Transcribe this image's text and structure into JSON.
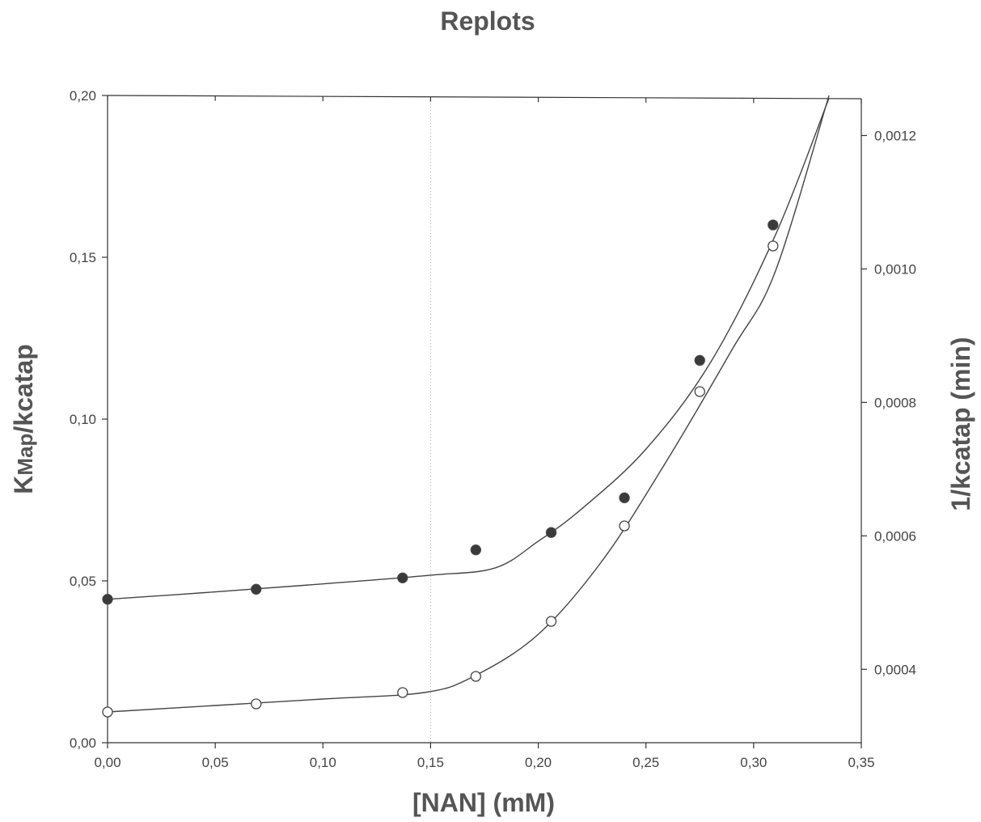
{
  "chart_data": {
    "type": "scatter",
    "title": "Replots",
    "xlabel": "[NAN] (mM)",
    "ylabel_left": {
      "main": "K",
      "sub": "Map",
      "rest": "/kcatap"
    },
    "ylabel_right": "1/kcatap (min)",
    "xlim": [
      0,
      0.35
    ],
    "ylim_left": [
      0,
      0.2
    ],
    "ylim_right": [
      0.00029,
      0.00126
    ],
    "x_ticks": [
      0,
      0.05,
      0.1,
      0.15,
      0.2,
      0.25,
      0.3,
      0.35
    ],
    "x_tick_labels": [
      "0,00",
      "0,05",
      "0,10",
      "0,15",
      "0,20",
      "0,25",
      "0,30",
      "0,35"
    ],
    "y_left_ticks": [
      0,
      0.05,
      0.1,
      0.15,
      0.2
    ],
    "y_left_tick_labels": [
      "0,00",
      "0,05",
      "0,10",
      "0,15",
      "0,20"
    ],
    "y_right_ticks": [
      0.0004,
      0.0006,
      0.0008,
      0.001,
      0.0012
    ],
    "y_right_tick_labels": [
      "0,0004",
      "0,0006",
      "0,0008",
      "0,0010",
      "0,0012"
    ],
    "reference_line_x": 0.15,
    "grid": false,
    "series": [
      {
        "marker": "filled-circle",
        "axis": "right",
        "x": [
          0.0,
          0.069,
          0.137,
          0.171,
          0.206,
          0.24,
          0.275,
          0.309
        ],
        "y": [
          0.000505,
          0.00052,
          0.000537,
          0.000579,
          0.000605,
          0.000657,
          0.000863,
          0.001066
        ]
      },
      {
        "marker": "open-circle",
        "axis": "left",
        "x": [
          0.0,
          0.069,
          0.137,
          0.171,
          0.206,
          0.24,
          0.275,
          0.309
        ],
        "y": [
          0.0095,
          0.012,
          0.0155,
          0.0205,
          0.0375,
          0.067,
          0.1085,
          0.1535
        ]
      }
    ],
    "fit_curves": [
      {
        "axis": "right",
        "x": [
          0.0,
          0.05,
          0.1,
          0.15,
          0.18,
          0.2,
          0.22,
          0.25,
          0.28,
          0.31,
          0.335
        ],
        "y": [
          0.000505,
          0.000516,
          0.000528,
          0.000541,
          0.000552,
          0.000592,
          0.00064,
          0.00073,
          0.00086,
          0.00105,
          0.001256
        ]
      },
      {
        "axis": "left",
        "x": [
          0.0,
          0.05,
          0.1,
          0.147,
          0.17,
          0.2,
          0.23,
          0.26,
          0.29,
          0.31,
          0.335
        ],
        "y": [
          0.0095,
          0.0115,
          0.0135,
          0.0155,
          0.0205,
          0.0335,
          0.0565,
          0.0875,
          0.1215,
          0.1455,
          0.2
        ]
      }
    ],
    "colors": {
      "marker_fill": "#3a3a3a",
      "marker_stroke": "#444444",
      "curve": "#444444"
    }
  }
}
